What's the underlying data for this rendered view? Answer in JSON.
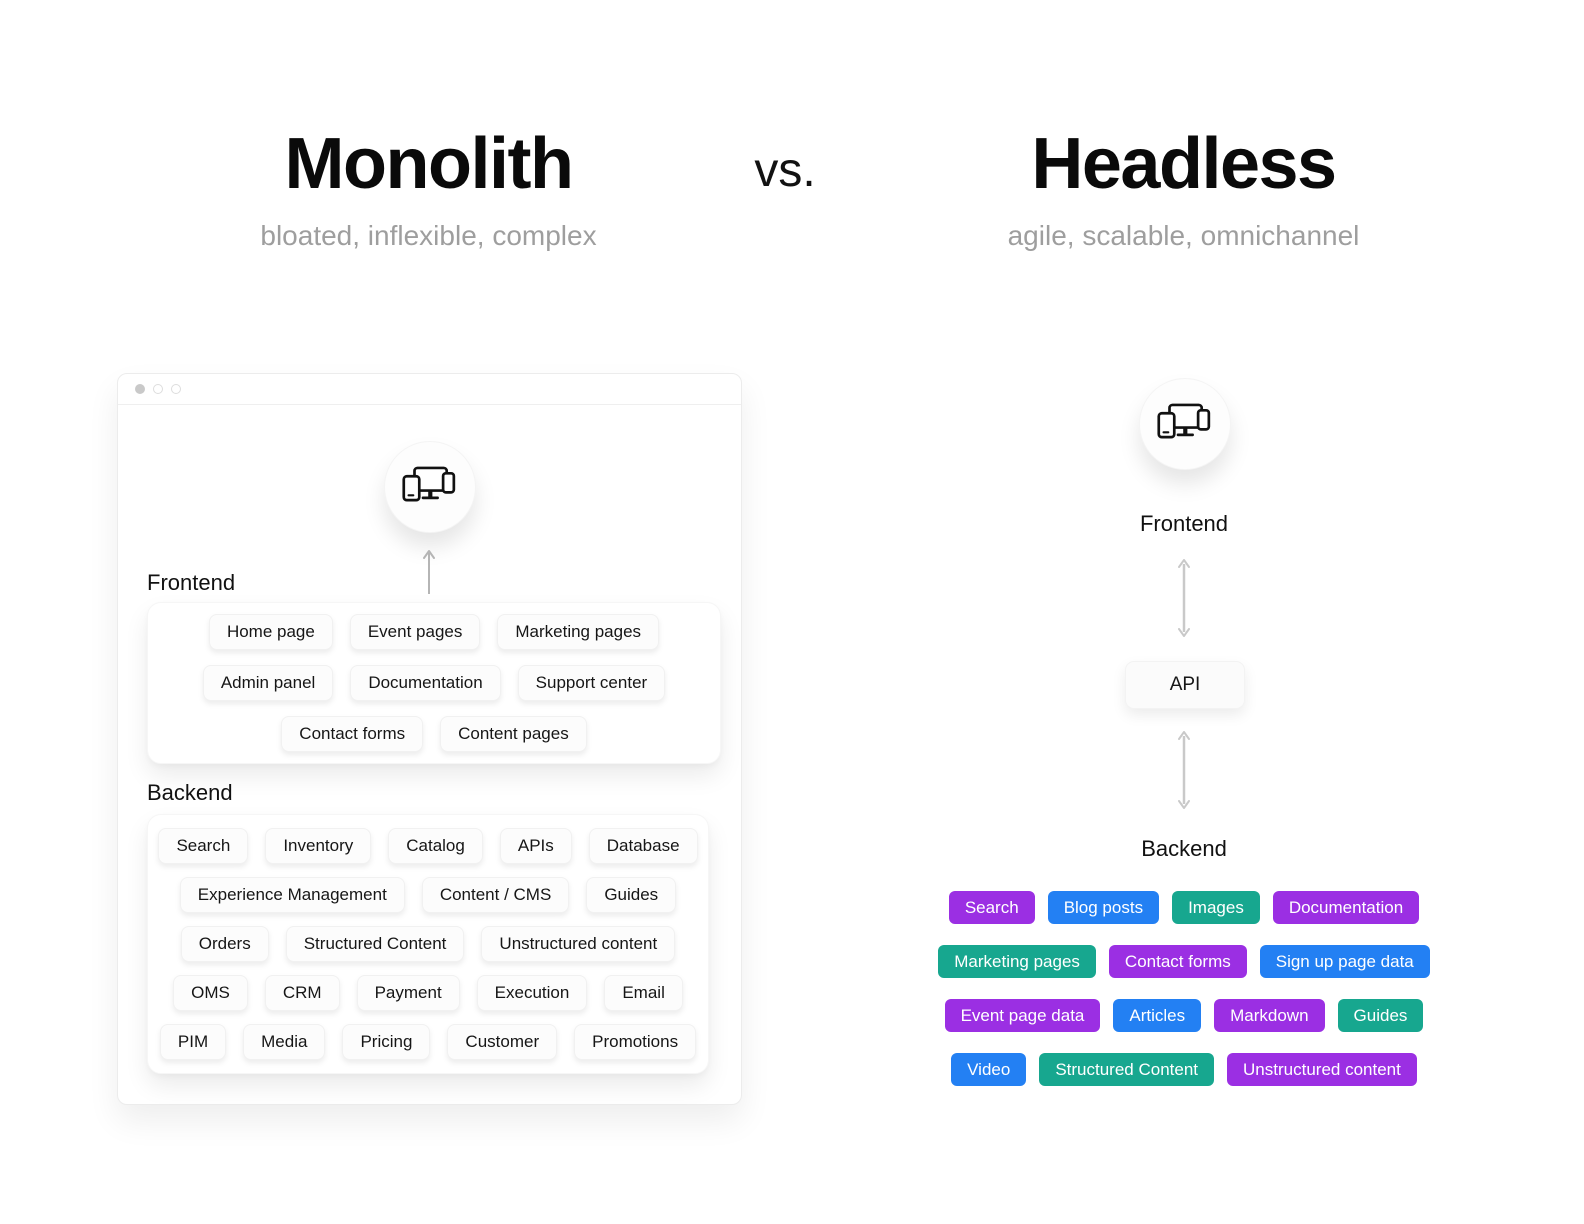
{
  "header": {
    "monolith_title": "Monolith",
    "monolith_subtitle": "bloated, inflexible, complex",
    "vs_label": "vs.",
    "headless_title": "Headless",
    "headless_subtitle": "agile, scalable, omnichannel"
  },
  "monolith_window": {
    "frontend_heading": "Frontend",
    "backend_heading": "Backend",
    "frontend_rows": [
      [
        "Home page",
        "Event pages",
        "Marketing pages"
      ],
      [
        "Admin panel",
        "Documentation",
        "Support center"
      ],
      [
        "Contact forms",
        "Content pages"
      ]
    ],
    "backend_rows": [
      [
        "Search",
        "Inventory",
        "Catalog",
        "APIs",
        "Database"
      ],
      [
        "Experience Management",
        "Content / CMS",
        "Guides"
      ],
      [
        "Orders",
        "Structured Content",
        "Unstructured content"
      ],
      [
        "OMS",
        "CRM",
        "Payment",
        "Execution",
        "Email"
      ],
      [
        "PIM",
        "Media",
        "Pricing",
        "Customer",
        "Promotions"
      ]
    ]
  },
  "headless": {
    "frontend_label": "Frontend",
    "api_label": "API",
    "backend_label": "Backend",
    "chip_rows": [
      [
        {
          "label": "Search",
          "color": "purple"
        },
        {
          "label": "Blog posts",
          "color": "blue"
        },
        {
          "label": "Images",
          "color": "teal"
        },
        {
          "label": "Documentation",
          "color": "purple"
        }
      ],
      [
        {
          "label": "Marketing pages",
          "color": "teal"
        },
        {
          "label": "Contact forms",
          "color": "purple"
        },
        {
          "label": "Sign up page data",
          "color": "blue"
        }
      ],
      [
        {
          "label": "Event page data",
          "color": "purple"
        },
        {
          "label": "Articles",
          "color": "blue"
        },
        {
          "label": "Markdown",
          "color": "purple"
        },
        {
          "label": "Guides",
          "color": "teal"
        }
      ],
      [
        {
          "label": "Video",
          "color": "blue"
        },
        {
          "label": "Structured Content",
          "color": "teal"
        },
        {
          "label": "Unstructured content",
          "color": "purple"
        }
      ]
    ]
  },
  "colors": {
    "purple": "#9B2FE3",
    "blue": "#2380F3",
    "teal": "#17A78F",
    "subtitle_gray": "#9E9E9E",
    "arrow_gray": "#C9C9C9"
  },
  "icons": {
    "monolith_frontend_icon": "devices-icon",
    "headless_frontend_icon": "devices-icon",
    "monolith_arrow": "arrow-up-icon",
    "headless_arrows": "double-arrow-vertical-icon",
    "window_controls": "window-dot-icon"
  }
}
